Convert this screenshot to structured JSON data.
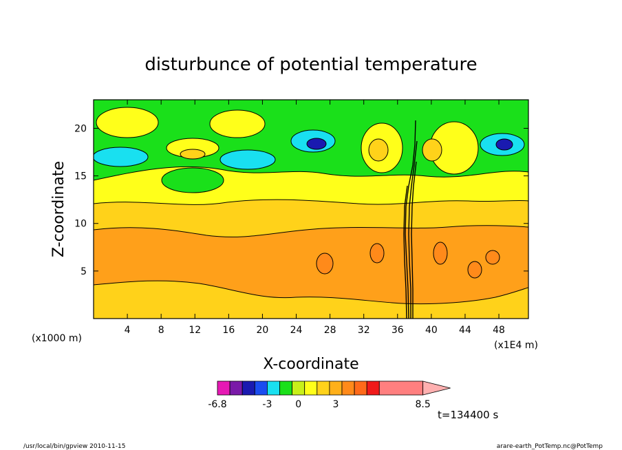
{
  "chart_data": {
    "type": "heatmap",
    "title": "disturbunce of potential temperature",
    "xlabel": "X-coordinate",
    "ylabel": "Z-coordinate",
    "x_unit_label": "(x1000 m)",
    "x_scale_label": "(x1E4 m)",
    "xlim": [
      0,
      51.5
    ],
    "ylim": [
      0,
      23
    ],
    "x_ticks": [
      4,
      8,
      12,
      16,
      20,
      24,
      28,
      32,
      36,
      40,
      44,
      48
    ],
    "y_ticks": [
      5,
      10,
      15,
      20
    ],
    "grid": false,
    "legend": "bottom",
    "colorbar": {
      "colors": [
        "#e619b4",
        "#7a1aa8",
        "#1a1ab0",
        "#1a4df0",
        "#19e0f0",
        "#1ae01a",
        "#c8f01a",
        "#ffff1a",
        "#ffd21a",
        "#ffb01a",
        "#ff8a1a",
        "#ff6a1a",
        "#f01a1a",
        "#ff7f7f"
      ],
      "extend_color": "#ffb0b0",
      "tick_labels": [
        "-6.8",
        "-3",
        "0",
        "3",
        "8.5"
      ]
    },
    "annotation": "t=134400 s",
    "band_colors": {
      "surface": "#ffd21a",
      "midlevel": "#ffa01a",
      "upper": "#ffd21a",
      "upper_light": "#ffff1a",
      "top": "#1ae01a"
    }
  },
  "footer": {
    "left": "/usr/local/bin/gpview   2010-11-15",
    "right": "arare-earth_PotTemp.nc@PotTemp"
  }
}
